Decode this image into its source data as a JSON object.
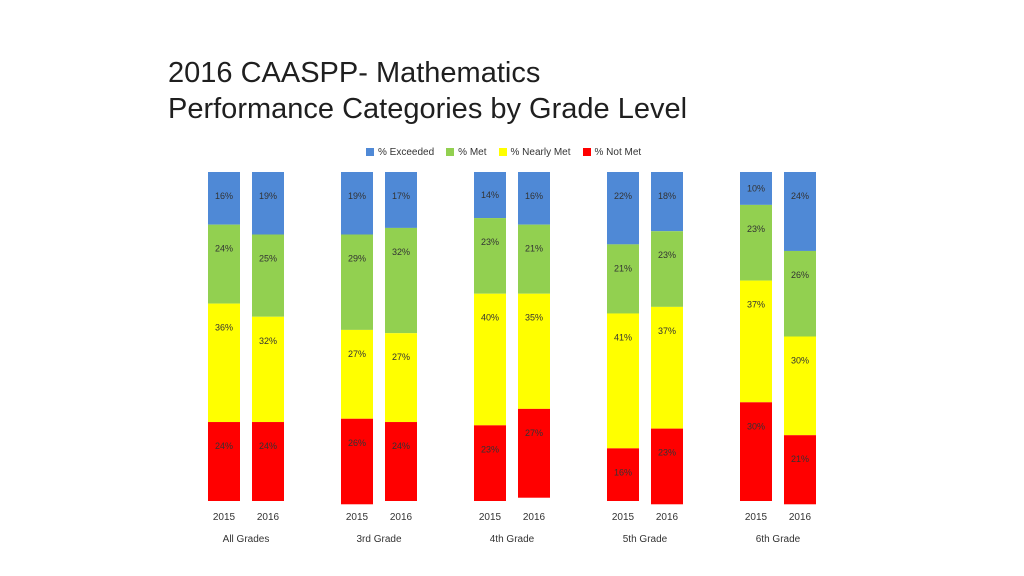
{
  "title": {
    "line1": "2016 CAASPP- Mathematics",
    "line2": "Performance Categories by Grade Level"
  },
  "chart_data": {
    "type": "bar",
    "stacked": true,
    "percent_stacked": true,
    "legend_position": "top",
    "grid": false,
    "groups": [
      "All Grades",
      "3rd Grade",
      "4th Grade",
      "5th Grade",
      "6th Grade"
    ],
    "years": [
      "2015",
      "2016"
    ],
    "series": [
      {
        "name": "% Exceeded",
        "color": "#4f89d6",
        "values": [
          [
            16,
            19
          ],
          [
            19,
            17
          ],
          [
            14,
            16
          ],
          [
            22,
            18
          ],
          [
            10,
            24
          ]
        ],
        "labels": [
          [
            "16%",
            "19%"
          ],
          [
            "19%",
            "17%"
          ],
          [
            "14%",
            "16%"
          ],
          [
            "22%",
            "18%"
          ],
          [
            "10%",
            "24%"
          ]
        ]
      },
      {
        "name": "% Met",
        "color": "#92d050",
        "values": [
          [
            24,
            25
          ],
          [
            29,
            32
          ],
          [
            23,
            21
          ],
          [
            21,
            23
          ],
          [
            23,
            26
          ]
        ],
        "labels": [
          [
            "24%",
            "25%"
          ],
          [
            "29%",
            "32%"
          ],
          [
            "23%",
            "21%"
          ],
          [
            "21%",
            "23%"
          ],
          [
            "23%",
            "26%"
          ]
        ]
      },
      {
        "name": "% Nearly Met",
        "color": "#ffff00",
        "values": [
          [
            36,
            32
          ],
          [
            27,
            27
          ],
          [
            40,
            35
          ],
          [
            41,
            37
          ],
          [
            37,
            30
          ]
        ],
        "labels": [
          [
            "36%",
            "32%"
          ],
          [
            "27%",
            "27%"
          ],
          [
            "40%",
            "35%"
          ],
          [
            "41%",
            "37%"
          ],
          [
            "37%",
            "30%"
          ]
        ]
      },
      {
        "name": "% Not Met",
        "color": "#ff0000",
        "values": [
          [
            24,
            24
          ],
          [
            26,
            24
          ],
          [
            23,
            27
          ],
          [
            16,
            23
          ],
          [
            30,
            21
          ]
        ],
        "labels": [
          [
            "24%",
            "24%"
          ],
          [
            "26%",
            "24%"
          ],
          [
            "23%",
            "27%"
          ],
          [
            "16%",
            "23%"
          ],
          [
            "30%",
            "21%"
          ]
        ]
      }
    ],
    "ylim": [
      0,
      100
    ]
  }
}
